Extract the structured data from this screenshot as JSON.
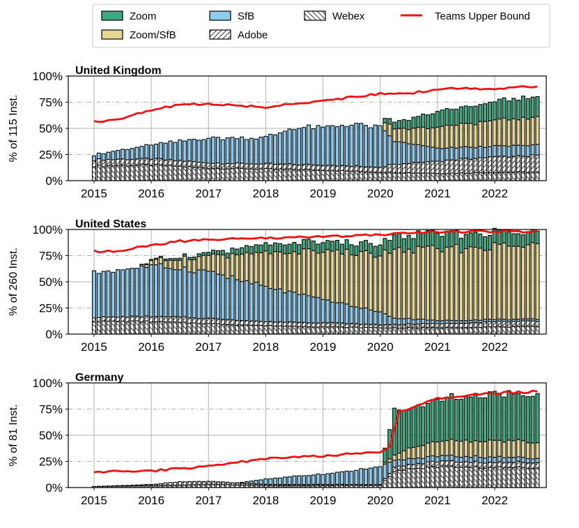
{
  "legend": {
    "location": "top-center",
    "entries": [
      {
        "key": "zoom",
        "label": "Zoom",
        "style": "fill",
        "color": "#3daa80"
      },
      {
        "key": "zoom_sfb",
        "label": "Zoom/SfB",
        "style": "fill",
        "color": "#e6d693"
      },
      {
        "key": "sfb",
        "label": "SfB",
        "style": "fill",
        "color": "#8ccbee"
      },
      {
        "key": "adobe",
        "label": "Adobe",
        "style": "hatch-forward",
        "color": "#ffffff"
      },
      {
        "key": "webex",
        "label": "Webex",
        "style": "hatch-back",
        "color": "#ffffff"
      },
      {
        "key": "teams",
        "label": "Teams Upper Bound",
        "style": "line",
        "color": "#ee1111"
      }
    ]
  },
  "colors": {
    "zoom": "#3daa80",
    "zoom_sfb": "#e6d693",
    "sfb": "#8ccbee",
    "hatch_bg": "#ffffff",
    "bar_edge": "#000000",
    "teams": "#ee1111",
    "grid_major": "#b0b0b0",
    "grid_minor": "#b0b0b0"
  },
  "chart_data": [
    {
      "type": "bar",
      "stacked": true,
      "title": "United Kingdom",
      "ylabel": "% of 115 Inst.",
      "xlabel": "",
      "ylim": [
        0,
        100
      ],
      "yticks": [
        "0%",
        "25%",
        "50%",
        "75%",
        "100%"
      ],
      "xlim": [
        2014.55,
        2022.9
      ],
      "xticks": [
        "2015",
        "2016",
        "2017",
        "2018",
        "2019",
        "2020",
        "2021",
        "2022"
      ],
      "grid": true,
      "bar_start": 2015.0,
      "bar_end": 2022.75,
      "bar_step": 0.0833,
      "series": [
        {
          "name": "Webex",
          "style": "hatch-back",
          "anchors": [
            [
              2015.0,
              14
            ],
            [
              2016.0,
              15
            ],
            [
              2017.0,
              12
            ],
            [
              2018.0,
              11
            ],
            [
              2019.0,
              10
            ],
            [
              2020.0,
              8
            ],
            [
              2021.0,
              7
            ],
            [
              2022.0,
              8
            ],
            [
              2022.75,
              8
            ]
          ]
        },
        {
          "name": "Adobe",
          "style": "hatch-forward",
          "anchors": [
            [
              2015.0,
              6
            ],
            [
              2016.0,
              6
            ],
            [
              2017.0,
              5
            ],
            [
              2018.0,
              5
            ],
            [
              2019.0,
              5
            ],
            [
              2020.0,
              5
            ],
            [
              2020.25,
              8
            ],
            [
              2021.0,
              12
            ],
            [
              2022.0,
              15
            ],
            [
              2022.75,
              16
            ]
          ]
        },
        {
          "name": "SfB",
          "style": "fill",
          "anchors": [
            [
              2015.0,
              5
            ],
            [
              2016.0,
              13
            ],
            [
              2017.0,
              24
            ],
            [
              2018.0,
              25
            ],
            [
              2018.5,
              35
            ],
            [
              2019.0,
              36
            ],
            [
              2019.5,
              40
            ],
            [
              2020.0,
              38
            ],
            [
              2020.25,
              22
            ],
            [
              2021.0,
              12
            ],
            [
              2022.0,
              10
            ],
            [
              2022.75,
              10
            ]
          ]
        },
        {
          "name": "Zoom/SfB",
          "style": "fill",
          "anchors": [
            [
              2015.0,
              0
            ],
            [
              2020.0,
              0
            ],
            [
              2020.1,
              10
            ],
            [
              2020.5,
              14
            ],
            [
              2021.0,
              20
            ],
            [
              2022.0,
              25
            ],
            [
              2022.75,
              26
            ]
          ]
        },
        {
          "name": "Zoom",
          "style": "fill",
          "anchors": [
            [
              2015.0,
              0
            ],
            [
              2020.0,
              0
            ],
            [
              2020.1,
              5
            ],
            [
              2020.5,
              9
            ],
            [
              2021.0,
              15
            ],
            [
              2022.0,
              18
            ],
            [
              2022.75,
              20
            ]
          ]
        },
        {
          "name": "Teams Upper Bound",
          "type": "line",
          "anchors": [
            [
              2015.0,
              56
            ],
            [
              2015.5,
              60
            ],
            [
              2016.0,
              67
            ],
            [
              2016.5,
              73
            ],
            [
              2017.0,
              73
            ],
            [
              2017.5,
              72
            ],
            [
              2018.0,
              70
            ],
            [
              2018.5,
              74
            ],
            [
              2019.0,
              76
            ],
            [
              2019.5,
              80
            ],
            [
              2020.0,
              83
            ],
            [
              2020.25,
              82
            ],
            [
              2020.75,
              85
            ],
            [
              2021.0,
              88
            ],
            [
              2022.0,
              88
            ],
            [
              2022.75,
              90
            ]
          ]
        }
      ]
    },
    {
      "type": "bar",
      "stacked": true,
      "title": "United States",
      "ylabel": "% of 260 Inst.",
      "xlabel": "",
      "ylim": [
        0,
        100
      ],
      "yticks": [
        "0%",
        "25%",
        "50%",
        "75%",
        "100%"
      ],
      "xlim": [
        2014.55,
        2022.9
      ],
      "xticks": [
        "2015",
        "2016",
        "2017",
        "2018",
        "2019",
        "2020",
        "2021",
        "2022"
      ],
      "grid": true,
      "bar_start": 2015.0,
      "bar_end": 2022.75,
      "bar_step": 0.0833,
      "series": [
        {
          "name": "Webex",
          "style": "hatch-back",
          "anchors": [
            [
              2015.0,
              12
            ],
            [
              2016.0,
              12
            ],
            [
              2017.0,
              10
            ],
            [
              2018.0,
              8
            ],
            [
              2019.0,
              7
            ],
            [
              2020.0,
              6
            ],
            [
              2021.0,
              6
            ],
            [
              2022.0,
              7
            ],
            [
              2022.75,
              7
            ]
          ]
        },
        {
          "name": "Adobe",
          "style": "hatch-forward",
          "anchors": [
            [
              2015.0,
              4
            ],
            [
              2016.0,
              5
            ],
            [
              2017.0,
              5
            ],
            [
              2018.0,
              4
            ],
            [
              2019.0,
              4
            ],
            [
              2020.0,
              3
            ],
            [
              2021.0,
              4
            ],
            [
              2022.0,
              5
            ],
            [
              2022.75,
              5
            ]
          ]
        },
        {
          "name": "SfB",
          "style": "fill",
          "anchors": [
            [
              2015.0,
              43
            ],
            [
              2016.0,
              48
            ],
            [
              2017.0,
              45
            ],
            [
              2018.0,
              33
            ],
            [
              2019.0,
              22
            ],
            [
              2020.0,
              12
            ],
            [
              2020.25,
              6
            ],
            [
              2021.0,
              3
            ],
            [
              2022.0,
              2
            ],
            [
              2022.75,
              2
            ]
          ]
        },
        {
          "name": "Zoom/SfB",
          "style": "fill",
          "anchors": [
            [
              2015.0,
              0
            ],
            [
              2015.75,
              0
            ],
            [
              2016.0,
              4
            ],
            [
              2017.0,
              15
            ],
            [
              2018.0,
              32
            ],
            [
              2019.0,
              46
            ],
            [
              2020.0,
              55
            ],
            [
              2020.25,
              65
            ],
            [
              2021.0,
              68
            ],
            [
              2022.0,
              70
            ],
            [
              2022.75,
              70
            ]
          ]
        },
        {
          "name": "Zoom",
          "style": "fill",
          "anchors": [
            [
              2015.0,
              0
            ],
            [
              2015.75,
              0
            ],
            [
              2016.0,
              1
            ],
            [
              2017.0,
              3
            ],
            [
              2018.0,
              8
            ],
            [
              2019.0,
              9
            ],
            [
              2020.0,
              10
            ],
            [
              2020.25,
              13
            ],
            [
              2021.0,
              15
            ],
            [
              2022.0,
              13
            ],
            [
              2022.75,
              12
            ]
          ]
        },
        {
          "name": "Teams Upper Bound",
          "type": "line",
          "anchors": [
            [
              2015.0,
              79
            ],
            [
              2015.5,
              80
            ],
            [
              2016.0,
              85
            ],
            [
              2016.5,
              89
            ],
            [
              2017.0,
              90
            ],
            [
              2018.0,
              92
            ],
            [
              2019.0,
              93
            ],
            [
              2020.0,
              95
            ],
            [
              2020.5,
              97
            ],
            [
              2021.0,
              98
            ],
            [
              2022.0,
              98
            ],
            [
              2022.75,
              98
            ]
          ]
        }
      ]
    },
    {
      "type": "bar",
      "stacked": true,
      "title": "Germany",
      "ylabel": "% of 81 Inst.",
      "xlabel": "",
      "ylim": [
        0,
        100
      ],
      "yticks": [
        "0%",
        "25%",
        "50%",
        "75%",
        "100%"
      ],
      "xlim": [
        2014.55,
        2022.9
      ],
      "xticks": [
        "2015",
        "2016",
        "2017",
        "2018",
        "2019",
        "2020",
        "2021",
        "2022"
      ],
      "grid": true,
      "bar_start": 2015.0,
      "bar_end": 2022.75,
      "bar_step": 0.0833,
      "series": [
        {
          "name": "Webex",
          "style": "hatch-back",
          "anchors": [
            [
              2015.0,
              1
            ],
            [
              2016.0,
              2
            ],
            [
              2017.0,
              3
            ],
            [
              2018.0,
              2
            ],
            [
              2019.0,
              2
            ],
            [
              2020.0,
              2
            ],
            [
              2020.25,
              15
            ],
            [
              2020.5,
              18
            ],
            [
              2021.0,
              20
            ],
            [
              2022.0,
              19
            ],
            [
              2022.75,
              19
            ]
          ]
        },
        {
          "name": "Adobe",
          "style": "hatch-forward",
          "anchors": [
            [
              2015.0,
              0
            ],
            [
              2016.0,
              1
            ],
            [
              2016.5,
              3
            ],
            [
              2017.0,
              3
            ],
            [
              2018.0,
              1
            ],
            [
              2019.0,
              1
            ],
            [
              2020.0,
              1
            ],
            [
              2020.25,
              4
            ],
            [
              2021.0,
              5
            ],
            [
              2022.0,
              5
            ],
            [
              2022.75,
              5
            ]
          ]
        },
        {
          "name": "SfB",
          "style": "fill",
          "anchors": [
            [
              2015.0,
              0
            ],
            [
              2017.5,
              0
            ],
            [
              2018.0,
              5
            ],
            [
              2018.5,
              8
            ],
            [
              2019.0,
              10
            ],
            [
              2019.5,
              13
            ],
            [
              2020.0,
              18
            ],
            [
              2020.25,
              6
            ],
            [
              2021.0,
              5
            ],
            [
              2022.0,
              5
            ],
            [
              2022.75,
              4
            ]
          ]
        },
        {
          "name": "Zoom/SfB",
          "style": "fill",
          "anchors": [
            [
              2015.0,
              0
            ],
            [
              2020.0,
              0
            ],
            [
              2020.25,
              5
            ],
            [
              2020.5,
              10
            ],
            [
              2021.0,
              14
            ],
            [
              2022.0,
              16
            ],
            [
              2022.75,
              16
            ]
          ]
        },
        {
          "name": "Zoom",
          "style": "fill",
          "anchors": [
            [
              2015.0,
              0
            ],
            [
              2020.0,
              0
            ],
            [
              2020.25,
              43
            ],
            [
              2020.5,
              38
            ],
            [
              2021.0,
              40
            ],
            [
              2022.0,
              45
            ],
            [
              2022.75,
              45
            ]
          ]
        },
        {
          "name": "Teams Upper Bound",
          "type": "line",
          "anchors": [
            [
              2015.0,
              14
            ],
            [
              2015.5,
              16
            ],
            [
              2016.0,
              16
            ],
            [
              2016.5,
              18
            ],
            [
              2017.0,
              20
            ],
            [
              2017.5,
              24
            ],
            [
              2018.0,
              28
            ],
            [
              2018.5,
              29
            ],
            [
              2019.0,
              30
            ],
            [
              2019.5,
              32
            ],
            [
              2020.0,
              34
            ],
            [
              2020.2,
              40
            ],
            [
              2020.3,
              72
            ],
            [
              2020.5,
              76
            ],
            [
              2021.0,
              85
            ],
            [
              2022.0,
              90
            ],
            [
              2022.75,
              92
            ]
          ]
        }
      ]
    }
  ]
}
